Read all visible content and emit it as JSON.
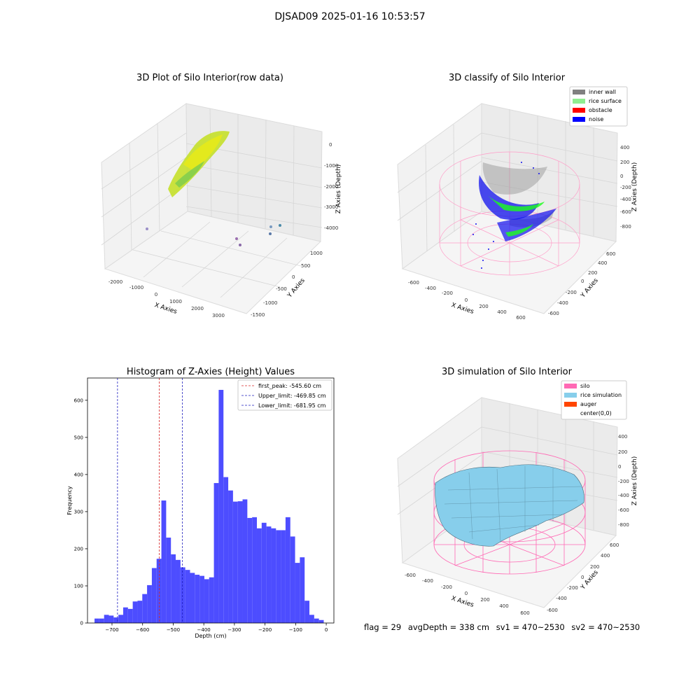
{
  "suptitle": "DJSAD09 2025-01-16 10:53:57",
  "footer": {
    "flag": "flag = 29",
    "avg_depth": "avgDepth = 338 cm",
    "sv1": "sv1 = 470~2530",
    "sv2": "sv2 = 470~2530"
  },
  "colors": {
    "hist_bar": "#4d4dff",
    "first_peak": "#d62728",
    "limits": "#1f1fbf",
    "inner_wall": "#808080",
    "rice_surface": "#90ee90",
    "obstacle": "#ff0000",
    "noise": "#0000ff",
    "silo": "#ff69b4",
    "rice_simulation": "#87ceeb",
    "auger": "#ff4500"
  },
  "plots": {
    "raw": {
      "title": "3D Plot of Silo Interior(row data)",
      "xlabel": "X Axies",
      "ylabel": "Y Axies",
      "zlabel": "Z Axies (Depth)",
      "xticks": [
        "-2000",
        "-1000",
        "0",
        "1000",
        "2000",
        "3000"
      ],
      "yticks": [
        "1000",
        "500",
        "0",
        "-500",
        "-1000",
        "-1500"
      ],
      "zticks": [
        "0",
        "-1000",
        "-2000",
        "-3000",
        "-4000"
      ]
    },
    "classify": {
      "title": "3D classify of Silo Interior",
      "xlabel": "X Axies",
      "ylabel": "Y Axies",
      "zlabel": "Z Axies (Depth)",
      "xticks": [
        "-600",
        "-400",
        "-200",
        "0",
        "200",
        "400",
        "600"
      ],
      "yticks": [
        "600",
        "400",
        "200",
        "0",
        "-200",
        "-400",
        "-600"
      ],
      "zticks": [
        "400",
        "200",
        "0",
        "-200",
        "-400",
        "-600",
        "-800"
      ],
      "legend": [
        "inner wall",
        "rice surface",
        "obstacle",
        "noise"
      ]
    },
    "simulation": {
      "title": "3D simulation of Silo Interior",
      "xlabel": "X Axies",
      "ylabel": "Y Axies",
      "zlabel": "Z Axies (Depth)",
      "xticks": [
        "-600",
        "-400",
        "-200",
        "0",
        "200",
        "400",
        "600"
      ],
      "yticks": [
        "600",
        "400",
        "200",
        "0",
        "-200",
        "-400",
        "-600"
      ],
      "zticks": [
        "400",
        "200",
        "0",
        "-200",
        "-400",
        "-600",
        "-800"
      ],
      "legend": [
        "silo",
        "rice simulation",
        "auger",
        "center(0,0)"
      ]
    }
  },
  "chart_data": [
    {
      "type": "bar",
      "title": "Histogram of Z-Axies (Height) Values",
      "xlabel": "Depth (cm)",
      "ylabel": "Frequency",
      "xlim": [
        -780,
        25
      ],
      "ylim": [
        0,
        660
      ],
      "bin_width": 15.6,
      "xticks": [
        -700,
        -600,
        -500,
        -400,
        -300,
        -200,
        -100,
        0
      ],
      "xtick_labels": [
        "−700",
        "−600",
        "−500",
        "−400",
        "−300",
        "−200",
        "−100",
        "0"
      ],
      "yticks": [
        0,
        100,
        200,
        300,
        400,
        500,
        600
      ],
      "bin_starts": [
        -757,
        -741.4,
        -725.8,
        -710.2,
        -694.6,
        -679,
        -663.4,
        -647.8,
        -632.2,
        -616.6,
        -601,
        -585.4,
        -569.8,
        -554.2,
        -538.6,
        -523,
        -507.4,
        -491.8,
        -476.2,
        -460.6,
        -445,
        -429.4,
        -413.8,
        -398.2,
        -382.6,
        -367,
        -351.4,
        -335.8,
        -320.2,
        -304.6,
        -289,
        -273.4,
        -257.8,
        -242.2,
        -226.6,
        -211,
        -195.4,
        -179.8,
        -164.2,
        -148.6,
        -133,
        -117.4,
        -101.8,
        -86.2,
        -70.6,
        -55,
        -39.4,
        -23.8,
        -8.2
      ],
      "values": [
        12,
        12,
        22,
        20,
        15,
        22,
        42,
        38,
        58,
        60,
        78,
        102,
        148,
        173,
        330,
        230,
        185,
        170,
        150,
        143,
        135,
        130,
        127,
        118,
        123,
        377,
        628,
        393,
        357,
        327,
        328,
        333,
        283,
        285,
        255,
        270,
        260,
        255,
        250,
        250,
        285,
        233,
        162,
        177,
        60,
        22,
        12,
        8,
        0
      ],
      "lines": [
        {
          "label": "first_peak: -545.60 cm",
          "x": -545.6,
          "style": "dashed",
          "color": "red"
        },
        {
          "label": "Upper_limit: -469.85 cm",
          "x": -469.85,
          "style": "dashed",
          "color": "blue"
        },
        {
          "label": "Lower_limit: -681.95 cm",
          "x": -681.95,
          "style": "dashed",
          "color": "blue"
        }
      ]
    }
  ]
}
